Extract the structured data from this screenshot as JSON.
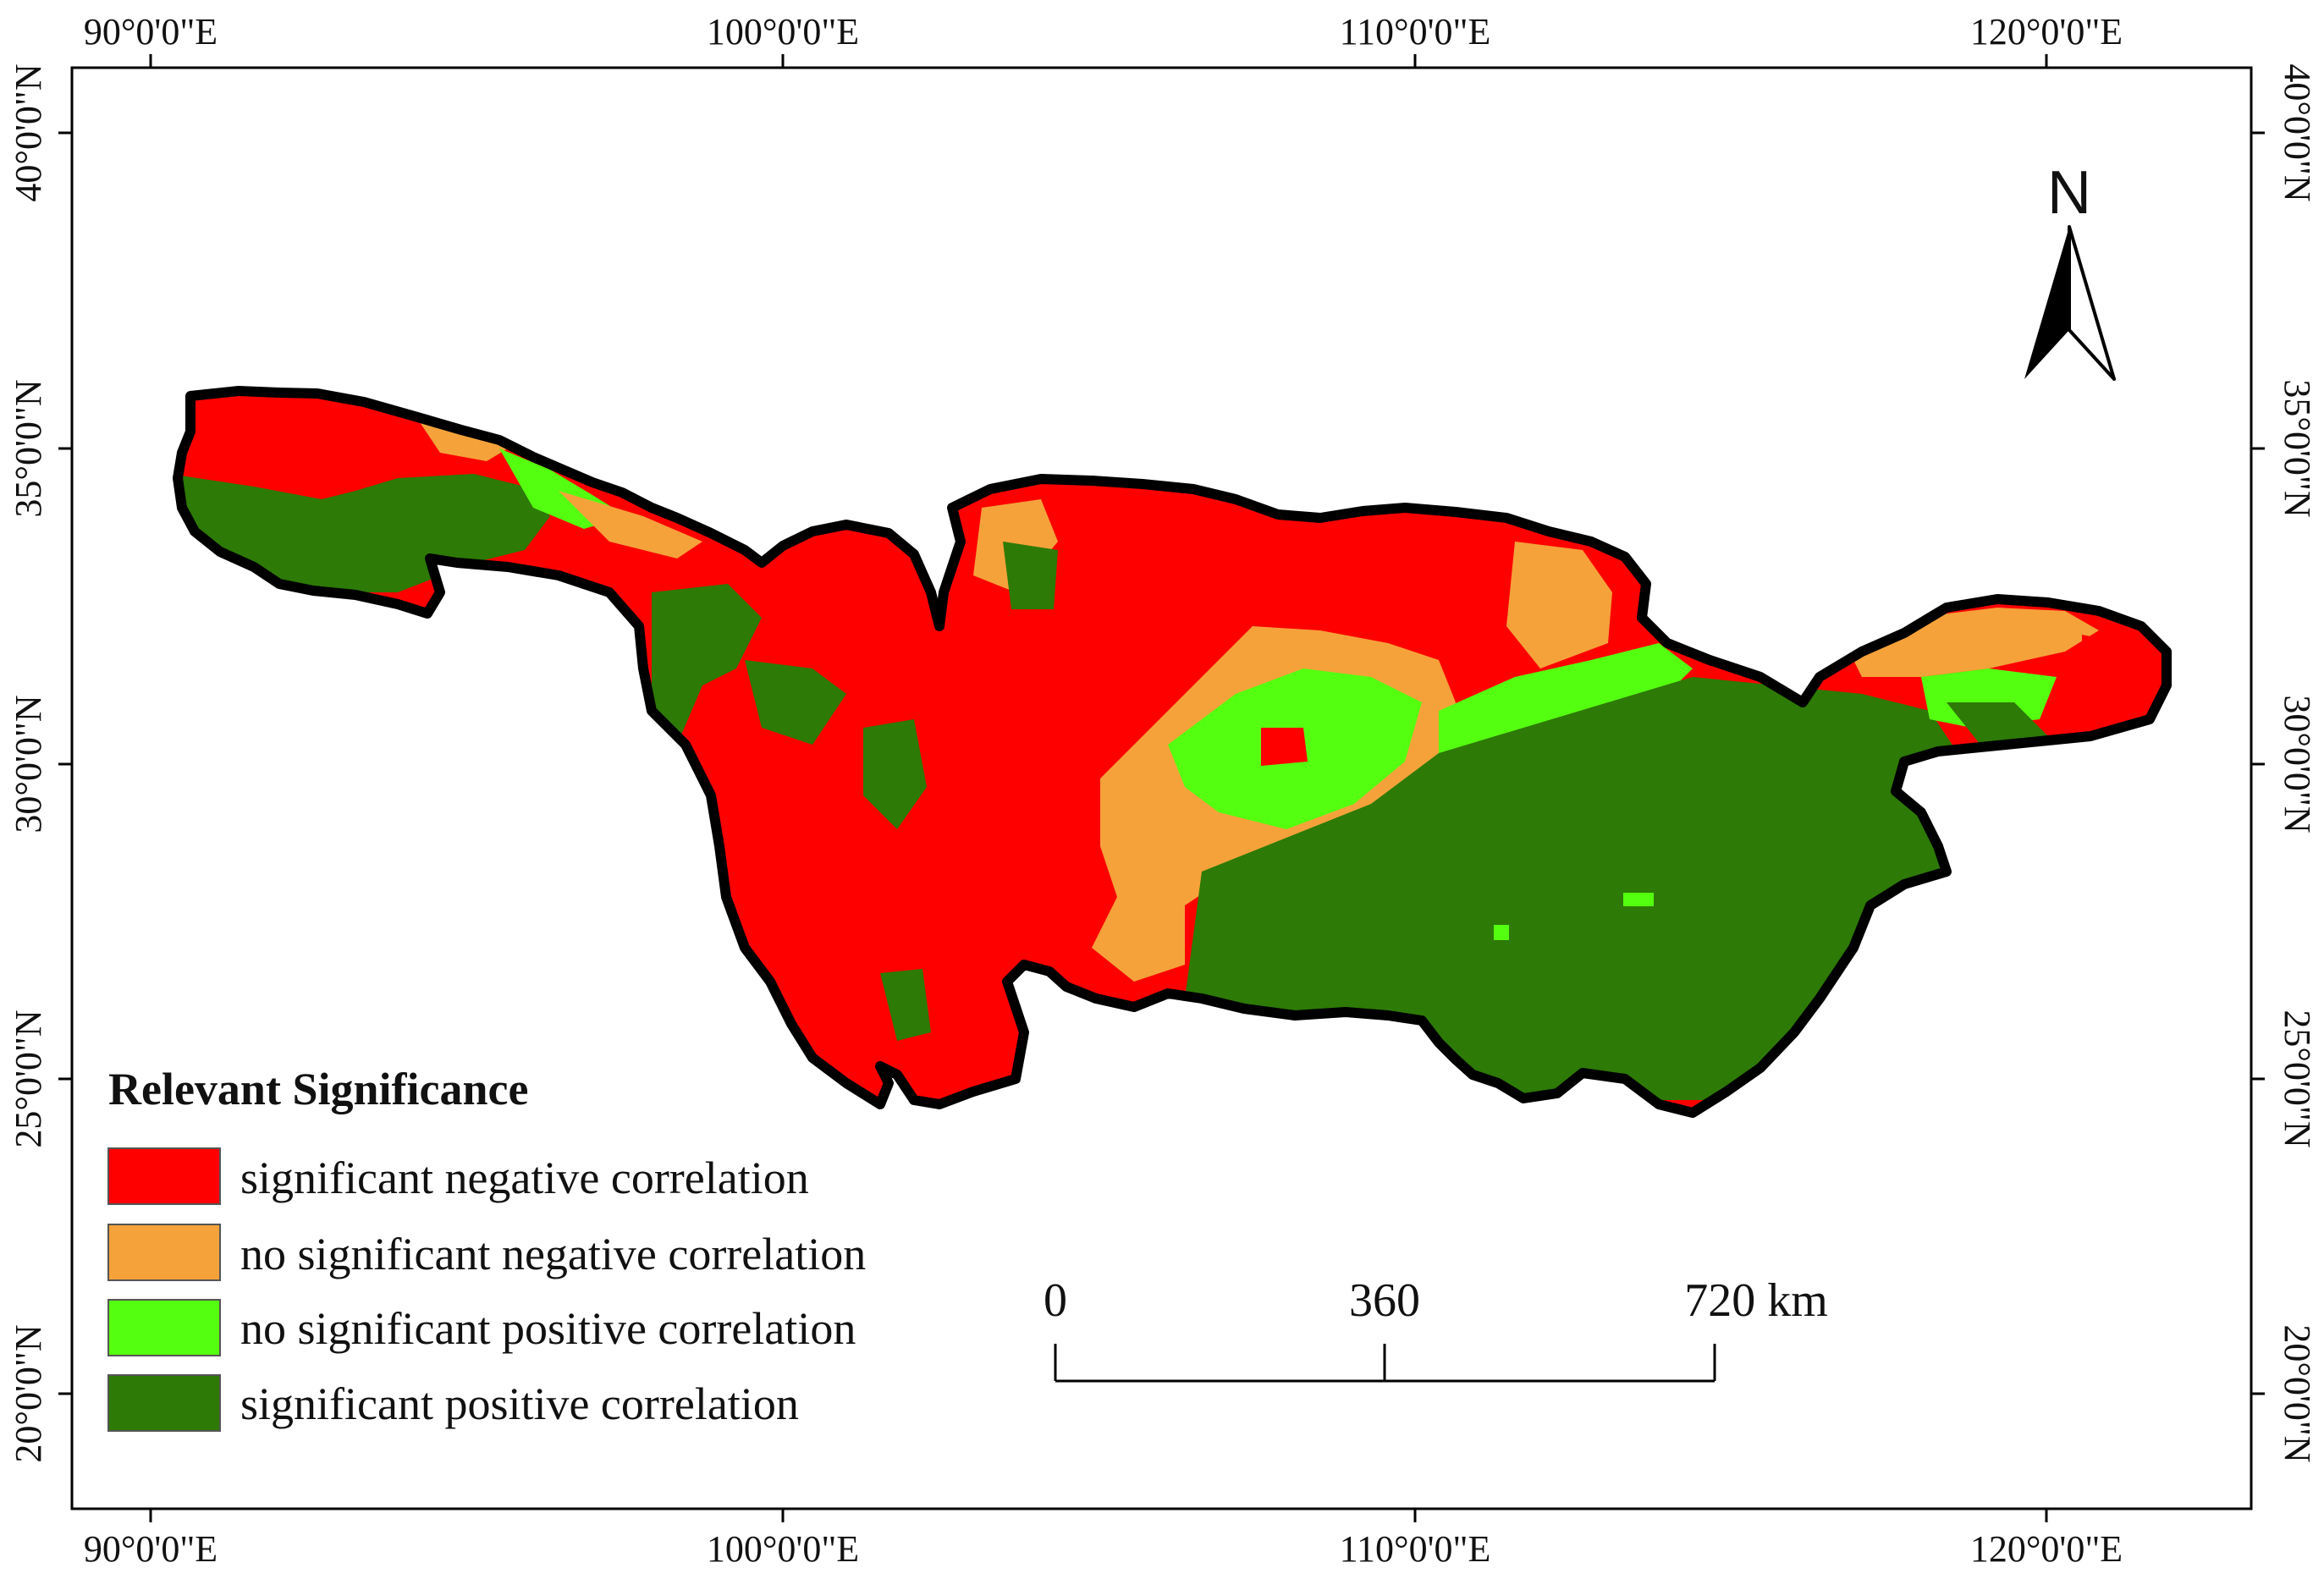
{
  "map": {
    "longitude_ticks": [
      "90°0'0\"E",
      "100°0'0\"E",
      "110°0'0\"E",
      "120°0'0\"E"
    ],
    "latitude_ticks": [
      "40°0'0\"N",
      "35°0'0\"N",
      "30°0'0\"N",
      "25°0'0\"N",
      "20°0'0\"N"
    ],
    "north_arrow": {
      "label": "N",
      "icon": "north-arrow-icon"
    },
    "scale_bar": {
      "labels": [
        "0",
        "360",
        "720 km"
      ]
    },
    "classes": {
      "sig_neg": "#ff0000",
      "nosig_neg": "#f5a23a",
      "nosig_pos": "#55ff10",
      "sig_pos": "#2d7a06"
    }
  },
  "legend": {
    "title": "Relevant Significance",
    "items": [
      {
        "label": "significant negative correlation",
        "color": "#ff0000"
      },
      {
        "label": "no significant negative correlation",
        "color": "#f5a23a"
      },
      {
        "label": "no significant positive correlation",
        "color": "#55ff10"
      },
      {
        "label": "significant positive correlation",
        "color": "#2d7a06"
      }
    ]
  }
}
